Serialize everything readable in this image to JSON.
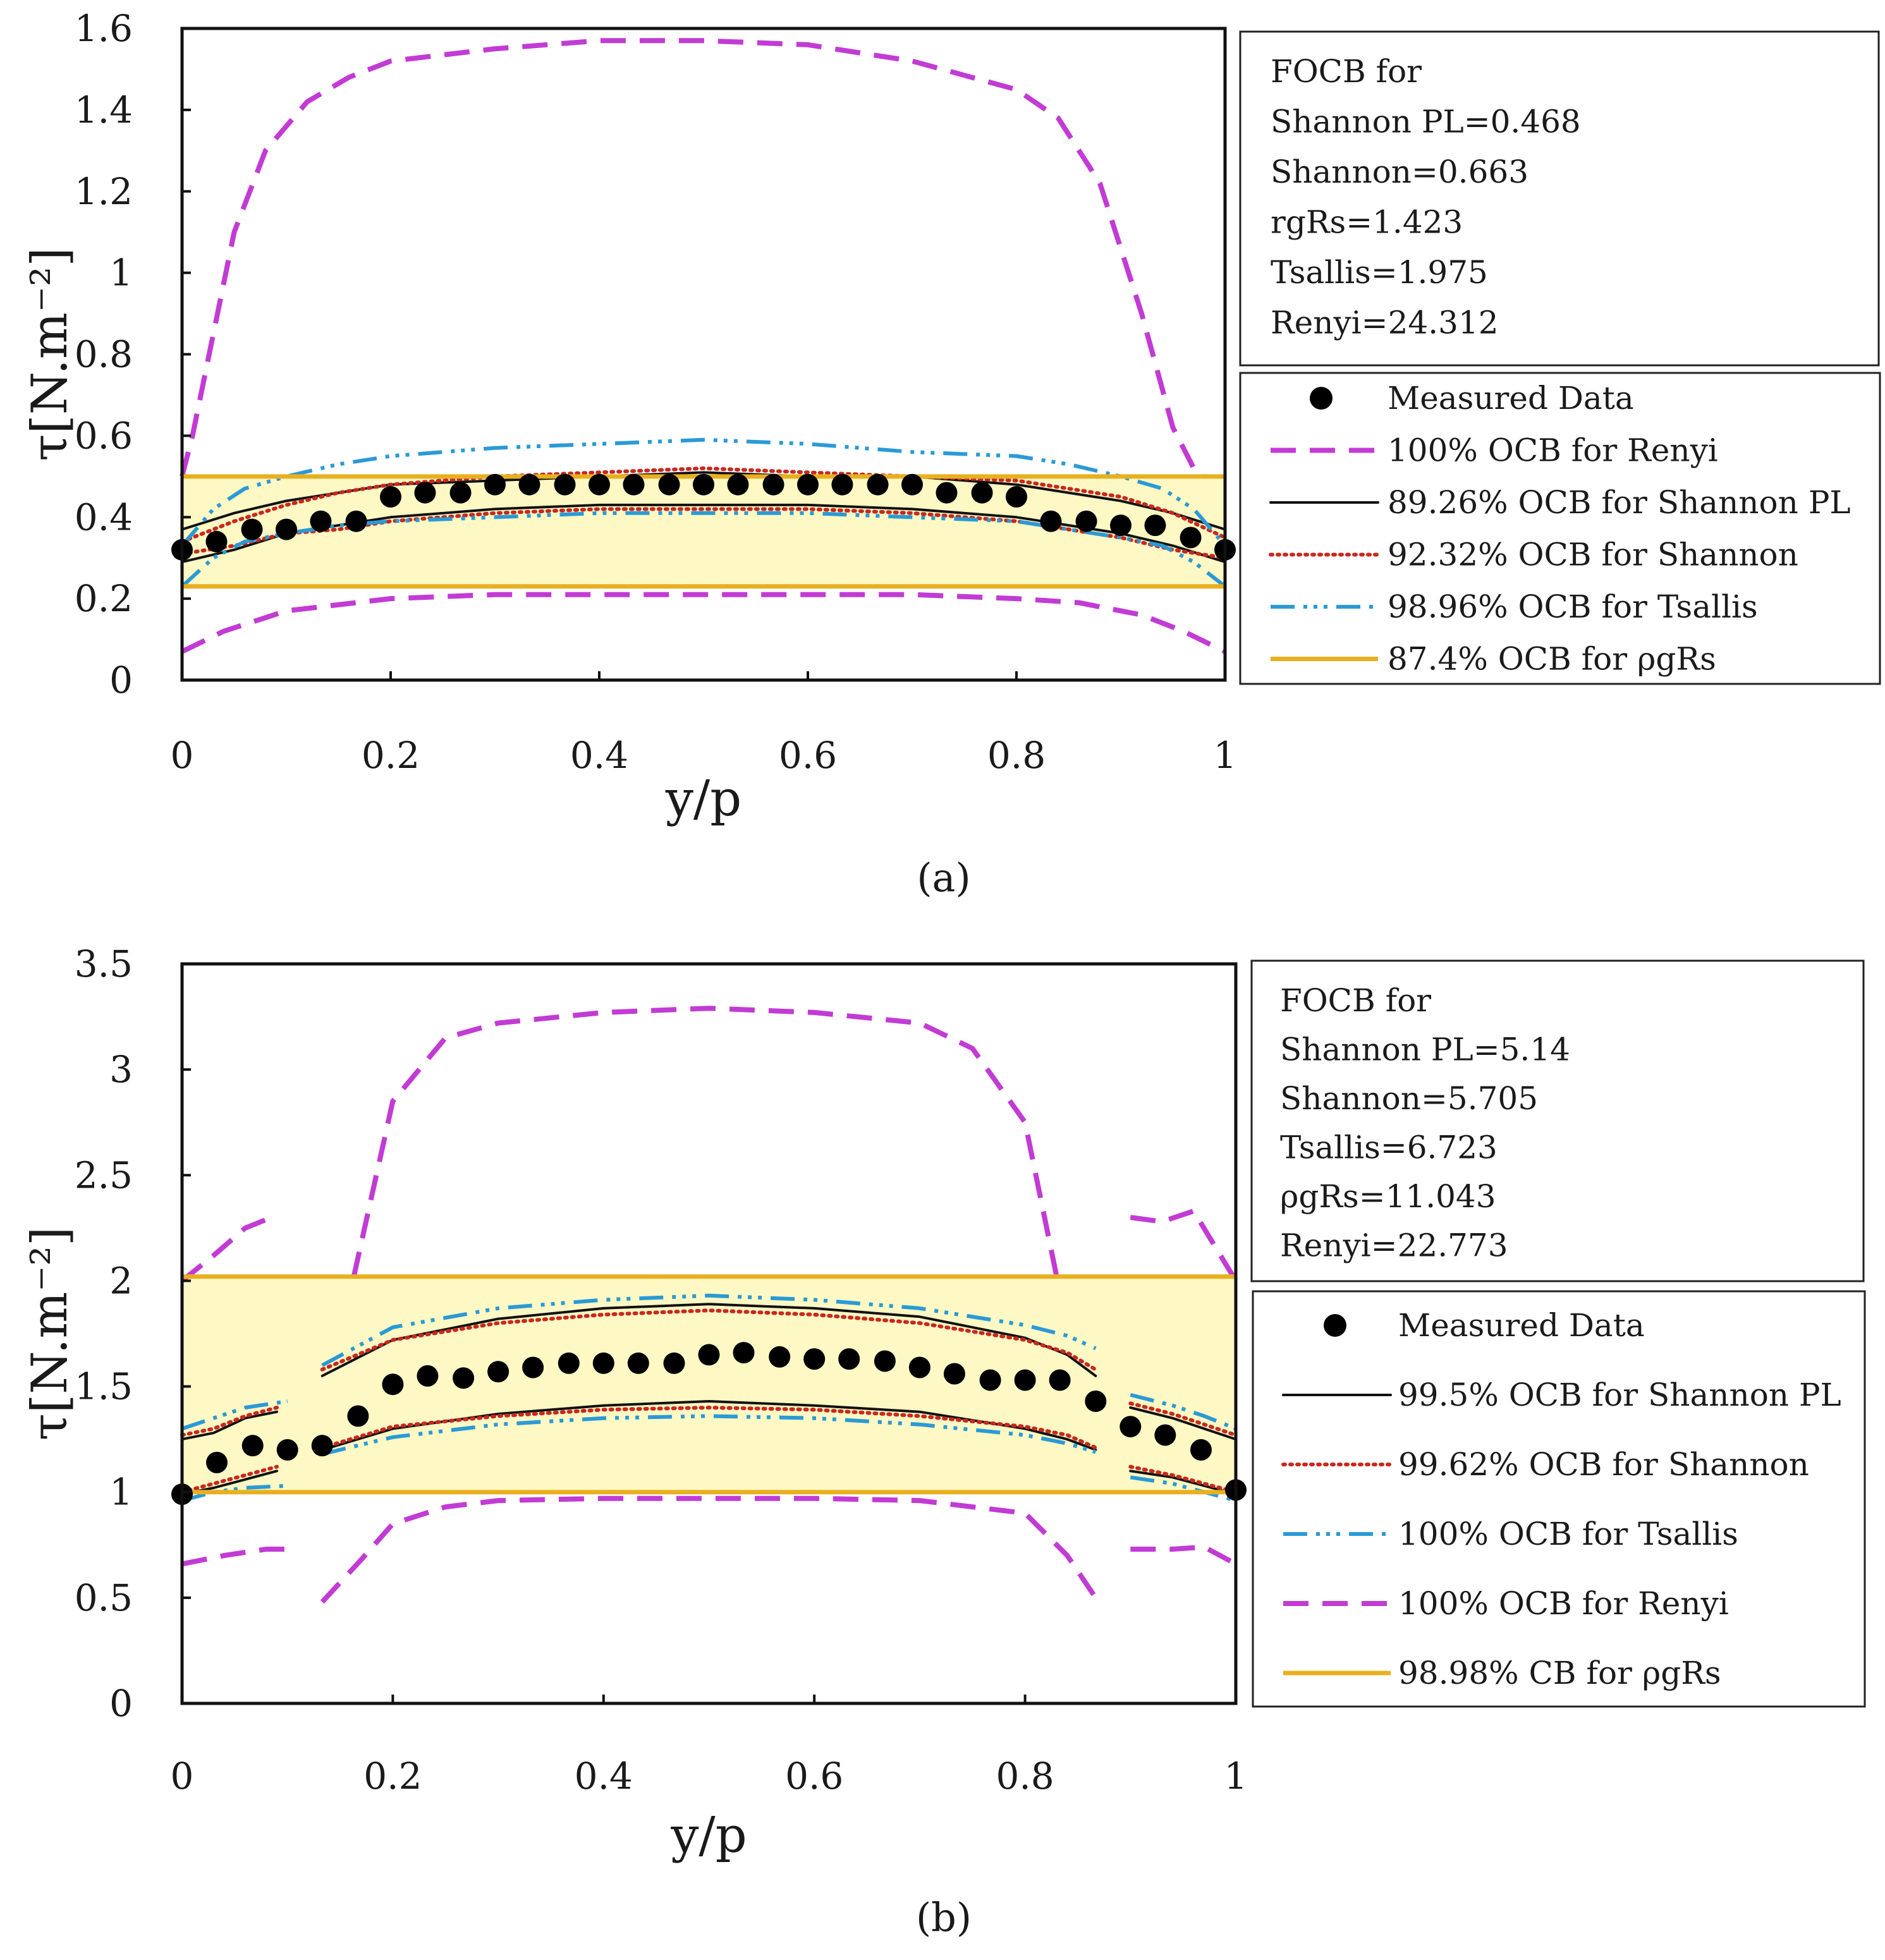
{
  "chart_data": [
    {
      "type": "line",
      "panel": "a",
      "caption": "(a)",
      "xlabel": "y/p",
      "ylabel": "τ[N.m⁻²]",
      "xlim": [
        0,
        1
      ],
      "ylim": [
        0,
        1.6
      ],
      "xticks": [
        0,
        0.2,
        0.4,
        0.6,
        0.8,
        1
      ],
      "xtick_labels": [
        "0",
        "0.2",
        "0.4",
        "0.6",
        "0.8",
        "1"
      ],
      "yticks": [
        0,
        0.2,
        0.4,
        0.6,
        0.8,
        1,
        1.2,
        1.4,
        1.6
      ],
      "ytick_labels": [
        "0",
        "0.2",
        "0.4",
        "0.6",
        "0.8",
        "1",
        "1.2",
        "1.4",
        "1.6"
      ],
      "focb_lines": [
        "FOCB for",
        "Shannon PL=0.468",
        "Shannon=0.663",
        "rgRs=1.423",
        "Tsallis=1.975",
        "Renyi=24.312"
      ],
      "legend": [
        {
          "key": "measured",
          "label": "Measured Data"
        },
        {
          "key": "renyi",
          "label": "100% OCB for Renyi"
        },
        {
          "key": "shannon_pl",
          "label": "89.26% OCB for Shannon PL"
        },
        {
          "key": "shannon",
          "label": "92.32% OCB for Shannon"
        },
        {
          "key": "tsallis",
          "label": "98.96% OCB for Tsallis"
        },
        {
          "key": "rgrs",
          "label": "87.4% OCB for ρgRs"
        }
      ],
      "colors": {
        "renyi": "#c23bd4",
        "shannon_pl": "#111111",
        "shannon": "#c8281e",
        "tsallis": "#2a9ad6",
        "rgrs": "#e8b020",
        "band": "#fdf8c4",
        "measured": "#000000"
      },
      "measured": {
        "x": [
          0,
          0.033,
          0.067,
          0.1,
          0.133,
          0.167,
          0.2,
          0.233,
          0.267,
          0.3,
          0.333,
          0.367,
          0.4,
          0.433,
          0.467,
          0.5,
          0.533,
          0.567,
          0.6,
          0.633,
          0.667,
          0.7,
          0.733,
          0.767,
          0.8,
          0.833,
          0.867,
          0.9,
          0.933,
          0.967,
          1
        ],
        "y": [
          0.32,
          0.34,
          0.37,
          0.37,
          0.39,
          0.39,
          0.45,
          0.46,
          0.46,
          0.48,
          0.48,
          0.48,
          0.48,
          0.48,
          0.48,
          0.48,
          0.48,
          0.48,
          0.48,
          0.48,
          0.48,
          0.48,
          0.46,
          0.46,
          0.45,
          0.39,
          0.39,
          0.38,
          0.38,
          0.35,
          0.32
        ]
      },
      "band": [
        0.23,
        0.5
      ],
      "bounds": [
        {
          "key": "renyi",
          "x": [
            0,
            0.01,
            0.03,
            0.05,
            0.08,
            0.12,
            0.16,
            0.2,
            0.3,
            0.4,
            0.5,
            0.6,
            0.7,
            0.8,
            0.84,
            0.88,
            0.92,
            0.95,
            0.97,
            0.98
          ],
          "y": [
            0.5,
            0.6,
            0.85,
            1.1,
            1.3,
            1.42,
            1.48,
            1.52,
            1.55,
            1.57,
            1.57,
            1.56,
            1.52,
            1.45,
            1.38,
            1.22,
            0.9,
            0.62,
            0.52,
            0.5
          ]
        },
        {
          "key": "renyi",
          "x": [
            0,
            0.04,
            0.1,
            0.2,
            0.3,
            0.4,
            0.5,
            0.6,
            0.7,
            0.8,
            0.86,
            0.92,
            0.96,
            1
          ],
          "y": [
            0.07,
            0.12,
            0.17,
            0.2,
            0.21,
            0.21,
            0.21,
            0.21,
            0.21,
            0.2,
            0.19,
            0.16,
            0.12,
            0.07
          ]
        },
        {
          "key": "shannon_pl",
          "x": [
            0,
            0.05,
            0.1,
            0.15,
            0.2,
            0.3,
            0.4,
            0.5,
            0.6,
            0.7,
            0.8,
            0.85,
            0.9,
            0.95,
            1
          ],
          "y": [
            0.37,
            0.41,
            0.44,
            0.46,
            0.48,
            0.49,
            0.5,
            0.51,
            0.5,
            0.5,
            0.48,
            0.46,
            0.44,
            0.41,
            0.37
          ]
        },
        {
          "key": "shannon_pl",
          "x": [
            0,
            0.05,
            0.1,
            0.15,
            0.2,
            0.3,
            0.4,
            0.5,
            0.6,
            0.7,
            0.8,
            0.85,
            0.9,
            0.95,
            1
          ],
          "y": [
            0.29,
            0.32,
            0.36,
            0.38,
            0.4,
            0.42,
            0.43,
            0.43,
            0.43,
            0.42,
            0.4,
            0.38,
            0.36,
            0.33,
            0.29
          ]
        },
        {
          "key": "shannon",
          "x": [
            0,
            0.05,
            0.1,
            0.15,
            0.2,
            0.3,
            0.4,
            0.5,
            0.6,
            0.7,
            0.8,
            0.85,
            0.9,
            0.95,
            1
          ],
          "y": [
            0.34,
            0.39,
            0.43,
            0.46,
            0.48,
            0.5,
            0.51,
            0.52,
            0.51,
            0.5,
            0.49,
            0.47,
            0.45,
            0.41,
            0.35
          ]
        },
        {
          "key": "shannon",
          "x": [
            0,
            0.05,
            0.1,
            0.15,
            0.2,
            0.3,
            0.4,
            0.5,
            0.6,
            0.7,
            0.8,
            0.85,
            0.9,
            0.95,
            1
          ],
          "y": [
            0.31,
            0.33,
            0.36,
            0.37,
            0.39,
            0.41,
            0.42,
            0.42,
            0.42,
            0.41,
            0.39,
            0.37,
            0.35,
            0.32,
            0.3
          ]
        },
        {
          "key": "tsallis",
          "x": [
            0,
            0.03,
            0.06,
            0.1,
            0.15,
            0.2,
            0.3,
            0.4,
            0.5,
            0.6,
            0.7,
            0.8,
            0.85,
            0.9,
            0.94,
            0.97,
            1
          ],
          "y": [
            0.33,
            0.42,
            0.47,
            0.5,
            0.53,
            0.55,
            0.57,
            0.58,
            0.59,
            0.58,
            0.56,
            0.55,
            0.53,
            0.5,
            0.47,
            0.42,
            0.33
          ]
        },
        {
          "key": "tsallis",
          "x": [
            0,
            0.03,
            0.06,
            0.1,
            0.15,
            0.2,
            0.3,
            0.4,
            0.5,
            0.6,
            0.7,
            0.8,
            0.85,
            0.9,
            0.94,
            0.97,
            1
          ],
          "y": [
            0.23,
            0.3,
            0.34,
            0.36,
            0.38,
            0.39,
            0.4,
            0.41,
            0.41,
            0.41,
            0.4,
            0.39,
            0.37,
            0.35,
            0.33,
            0.29,
            0.23
          ]
        }
      ]
    },
    {
      "type": "line",
      "panel": "b",
      "caption": "(b)",
      "xlabel": "y/p",
      "ylabel": "τ[N.m⁻²]",
      "xlim": [
        0,
        1
      ],
      "ylim": [
        0,
        3.5
      ],
      "xticks": [
        0,
        0.2,
        0.4,
        0.6,
        0.8,
        1
      ],
      "xtick_labels": [
        "0",
        "0.2",
        "0.4",
        "0.6",
        "0.8",
        "1"
      ],
      "yticks": [
        0,
        0.5,
        1,
        1.5,
        2,
        2.5,
        3,
        3.5
      ],
      "ytick_labels": [
        "0",
        "0.5",
        "1",
        "1.5",
        "2",
        "2.5",
        "3",
        "3.5"
      ],
      "focb_lines": [
        "FOCB for",
        "Shannon PL=5.14",
        "Shannon=5.705",
        "Tsallis=6.723",
        "ρgRs=11.043",
        "Renyi=22.773"
      ],
      "legend": [
        {
          "key": "measured",
          "label": "Measured Data"
        },
        {
          "key": "shannon_pl",
          "label": "99.5% OCB for Shannon PL"
        },
        {
          "key": "shannon",
          "label": "99.62% OCB for Shannon"
        },
        {
          "key": "tsallis",
          "label": "100% OCB for Tsallis"
        },
        {
          "key": "renyi",
          "label": "100% OCB for Renyi"
        },
        {
          "key": "rgrs",
          "label": "98.98% CB for ρgRs"
        }
      ],
      "colors": {
        "renyi": "#c23bd4",
        "shannon_pl": "#111111",
        "shannon": "#c8281e",
        "tsallis": "#2a9ad6",
        "rgrs": "#e8b020",
        "band": "#fdf8c4",
        "measured": "#000000"
      },
      "measured": {
        "x": [
          0,
          0.033,
          0.067,
          0.1,
          0.133,
          0.167,
          0.2,
          0.233,
          0.267,
          0.3,
          0.333,
          0.367,
          0.4,
          0.433,
          0.467,
          0.5,
          0.533,
          0.567,
          0.6,
          0.633,
          0.667,
          0.7,
          0.733,
          0.767,
          0.8,
          0.833,
          0.867,
          0.9,
          0.933,
          0.967,
          1
        ],
        "y": [
          0.99,
          1.14,
          1.22,
          1.2,
          1.22,
          1.36,
          1.51,
          1.55,
          1.54,
          1.57,
          1.59,
          1.61,
          1.61,
          1.61,
          1.61,
          1.65,
          1.66,
          1.64,
          1.63,
          1.63,
          1.62,
          1.59,
          1.56,
          1.53,
          1.53,
          1.53,
          1.43,
          1.31,
          1.27,
          1.2,
          1.01
        ]
      },
      "band": [
        1.0,
        2.02
      ],
      "bounds": [
        {
          "key": "renyi",
          "x": [
            0,
            0.03,
            0.06,
            0.085
          ],
          "y": [
            2.0,
            2.12,
            2.25,
            2.3
          ]
        },
        {
          "key": "renyi",
          "x": [
            0.163,
            0.2,
            0.25,
            0.3,
            0.4,
            0.5,
            0.6,
            0.7,
            0.75,
            0.8,
            0.83
          ],
          "y": [
            2.02,
            2.85,
            3.15,
            3.22,
            3.27,
            3.29,
            3.27,
            3.22,
            3.1,
            2.75,
            2.02
          ]
        },
        {
          "key": "renyi",
          "x": [
            0.9,
            0.93,
            0.96,
            1
          ],
          "y": [
            2.3,
            2.28,
            2.33,
            2.0
          ]
        },
        {
          "key": "renyi",
          "x": [
            0,
            0.04,
            0.08,
            0.1
          ],
          "y": [
            0.66,
            0.7,
            0.73,
            0.73
          ]
        },
        {
          "key": "renyi",
          "x": [
            0.133,
            0.17,
            0.2,
            0.25,
            0.3,
            0.4,
            0.5,
            0.6,
            0.7,
            0.8,
            0.84,
            0.867
          ],
          "y": [
            0.48,
            0.68,
            0.85,
            0.93,
            0.96,
            0.97,
            0.97,
            0.97,
            0.96,
            0.9,
            0.7,
            0.5
          ]
        },
        {
          "key": "renyi",
          "x": [
            0.9,
            0.94,
            0.97,
            1
          ],
          "y": [
            0.73,
            0.73,
            0.74,
            0.66
          ]
        },
        {
          "key": "shannon_pl",
          "x": [
            0,
            0.03,
            0.06,
            0.09
          ],
          "y": [
            1.25,
            1.28,
            1.35,
            1.38
          ]
        },
        {
          "key": "shannon_pl",
          "x": [
            0.133,
            0.2,
            0.3,
            0.4,
            0.5,
            0.6,
            0.7,
            0.8,
            0.84,
            0.867
          ],
          "y": [
            1.55,
            1.72,
            1.82,
            1.87,
            1.89,
            1.87,
            1.83,
            1.73,
            1.65,
            1.55
          ]
        },
        {
          "key": "shannon_pl",
          "x": [
            0.9,
            0.94,
            0.97,
            1
          ],
          "y": [
            1.4,
            1.35,
            1.3,
            1.25
          ]
        },
        {
          "key": "shannon_pl",
          "x": [
            0,
            0.03,
            0.06,
            0.09
          ],
          "y": [
            0.99,
            1.02,
            1.06,
            1.1
          ]
        },
        {
          "key": "shannon_pl",
          "x": [
            0.133,
            0.2,
            0.3,
            0.4,
            0.5,
            0.6,
            0.7,
            0.8,
            0.84,
            0.867
          ],
          "y": [
            1.2,
            1.3,
            1.37,
            1.41,
            1.43,
            1.41,
            1.38,
            1.3,
            1.25,
            1.2
          ]
        },
        {
          "key": "shannon_pl",
          "x": [
            0.9,
            0.94,
            0.97,
            1
          ],
          "y": [
            1.1,
            1.07,
            1.03,
            0.99
          ]
        },
        {
          "key": "shannon",
          "x": [
            0,
            0.03,
            0.06,
            0.09
          ],
          "y": [
            1.27,
            1.3,
            1.36,
            1.4
          ]
        },
        {
          "key": "shannon",
          "x": [
            0.133,
            0.2,
            0.3,
            0.4,
            0.5,
            0.6,
            0.7,
            0.8,
            0.84,
            0.867
          ],
          "y": [
            1.58,
            1.72,
            1.8,
            1.84,
            1.86,
            1.84,
            1.8,
            1.72,
            1.66,
            1.58
          ]
        },
        {
          "key": "shannon",
          "x": [
            0.9,
            0.94,
            0.97,
            1
          ],
          "y": [
            1.42,
            1.37,
            1.32,
            1.27
          ]
        },
        {
          "key": "shannon",
          "x": [
            0,
            0.03,
            0.06,
            0.09
          ],
          "y": [
            1.0,
            1.04,
            1.08,
            1.12
          ]
        },
        {
          "key": "shannon",
          "x": [
            0.133,
            0.2,
            0.3,
            0.4,
            0.5,
            0.6,
            0.7,
            0.8,
            0.84,
            0.867
          ],
          "y": [
            1.21,
            1.31,
            1.36,
            1.39,
            1.4,
            1.39,
            1.36,
            1.31,
            1.27,
            1.21
          ]
        },
        {
          "key": "shannon",
          "x": [
            0.9,
            0.94,
            0.97,
            1
          ],
          "y": [
            1.12,
            1.08,
            1.04,
            1.0
          ]
        },
        {
          "key": "tsallis",
          "x": [
            0,
            0.03,
            0.06,
            0.1
          ],
          "y": [
            1.3,
            1.35,
            1.4,
            1.43
          ]
        },
        {
          "key": "tsallis",
          "x": [
            0.133,
            0.2,
            0.3,
            0.4,
            0.5,
            0.6,
            0.7,
            0.8,
            0.84,
            0.867
          ],
          "y": [
            1.6,
            1.78,
            1.87,
            1.91,
            1.93,
            1.91,
            1.87,
            1.79,
            1.74,
            1.68
          ]
        },
        {
          "key": "tsallis",
          "x": [
            0.9,
            0.94,
            0.97,
            1
          ],
          "y": [
            1.46,
            1.41,
            1.36,
            1.3
          ]
        },
        {
          "key": "tsallis",
          "x": [
            0,
            0.03,
            0.06,
            0.1
          ],
          "y": [
            0.96,
            1.0,
            1.02,
            1.03
          ]
        },
        {
          "key": "tsallis",
          "x": [
            0.133,
            0.2,
            0.3,
            0.4,
            0.5,
            0.6,
            0.7,
            0.8,
            0.84,
            0.867
          ],
          "y": [
            1.18,
            1.26,
            1.32,
            1.35,
            1.36,
            1.35,
            1.32,
            1.27,
            1.23,
            1.19
          ]
        },
        {
          "key": "tsallis",
          "x": [
            0.9,
            0.94,
            0.97,
            1
          ],
          "y": [
            1.07,
            1.04,
            1.0,
            0.96
          ]
        }
      ]
    }
  ]
}
